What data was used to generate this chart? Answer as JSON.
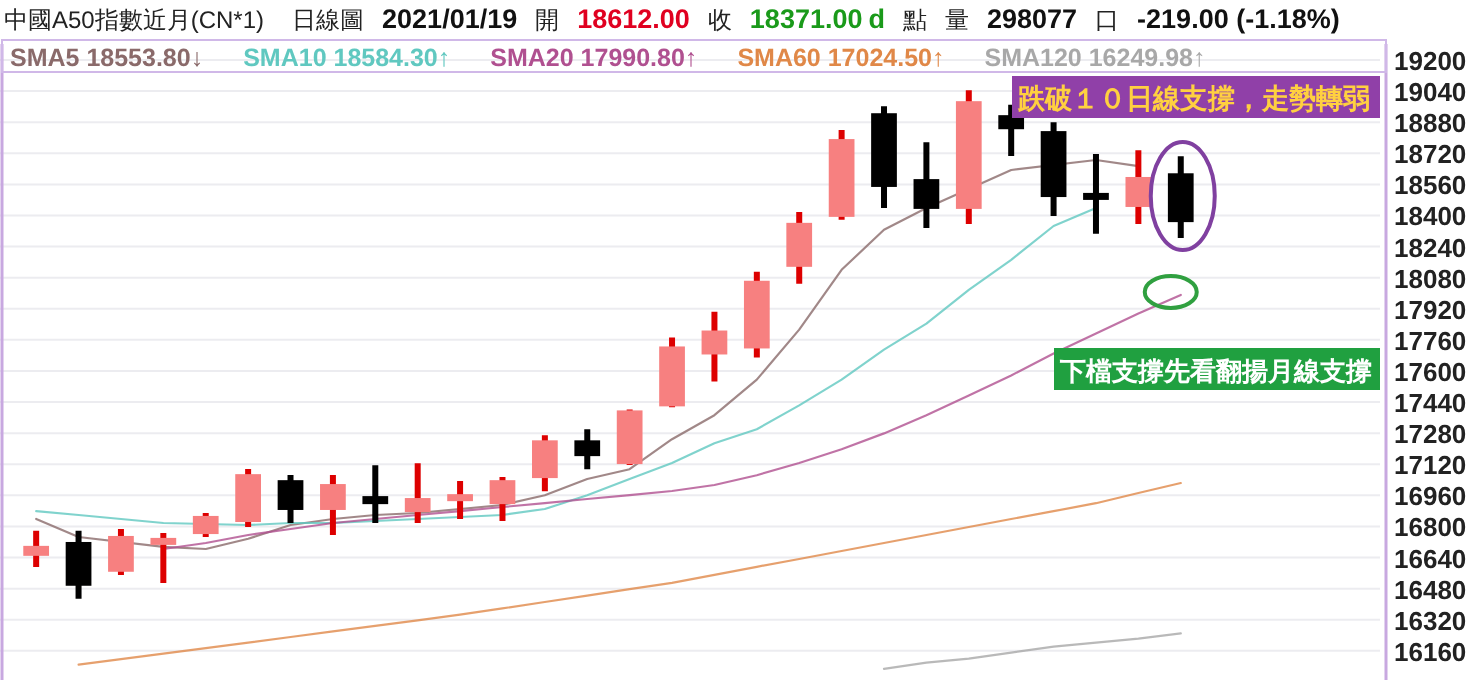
{
  "chart_data": {
    "type": "candlestick",
    "title": "中國A50指數近月(CN*1)",
    "annotations": [
      "日線圖",
      "2021/01/19",
      "開",
      "18612.00",
      "收",
      "18371.00",
      "d",
      "點",
      "量",
      "298077",
      "口",
      "-219.00 (-1.18%)",
      "跌破１０日線支撐，走勢轉弱",
      "下檔支撐先看翻揚月線支撐"
    ],
    "categories": [
      null,
      null,
      null,
      null,
      null,
      null,
      null,
      null,
      null,
      null,
      null,
      null,
      null,
      null,
      null,
      null,
      null,
      null,
      null,
      null,
      null,
      null,
      null,
      null,
      null,
      null,
      null,
      null
    ],
    "ohlc": [
      [
        16654,
        16767,
        16602,
        16695
      ],
      [
        16715,
        16767,
        16438,
        16500
      ],
      [
        16572,
        16777,
        16561,
        16746
      ],
      [
        16725,
        16756,
        16520,
        16736
      ],
      [
        16766,
        16859,
        16756,
        16849
      ],
      [
        16828,
        17085,
        16808,
        17064
      ],
      [
        17033,
        17054,
        16828,
        16890
      ],
      [
        16890,
        17054,
        16766,
        17013
      ],
      [
        16951,
        17105,
        16828,
        16920
      ],
      [
        16879,
        17115,
        16828,
        16941
      ],
      [
        16941,
        17023,
        16849,
        16961
      ],
      [
        16920,
        17044,
        16838,
        17033
      ],
      [
        17054,
        17259,
        16992,
        17238
      ],
      [
        17238,
        17290,
        17105,
        17167
      ],
      [
        17126,
        17392,
        17126,
        17392
      ],
      [
        17423,
        17762,
        17423,
        17721
      ],
      [
        17690,
        17895,
        17556,
        17803
      ],
      [
        17721,
        18100,
        17680,
        18059
      ],
      [
        18141,
        18408,
        18059,
        18357
      ],
      [
        18398,
        18829,
        18388,
        18788
      ],
      [
        18921,
        18952,
        18449,
        18552
      ],
      [
        18582,
        18767,
        18346,
        18439
      ],
      [
        18439,
        19034,
        18367,
        18983
      ],
      [
        18911,
        18960,
        18716,
        18849
      ],
      [
        18829,
        18870,
        18408,
        18500
      ],
      [
        18511,
        18706,
        18316,
        18490
      ],
      [
        18449,
        18726,
        18367,
        18593
      ],
      [
        18612,
        18695,
        18295,
        18371
      ]
    ],
    "series": [
      {
        "name": "SMA5 18553.80↓",
        "type": "line",
        "color": "#8a6a6a",
        "values": [
          16838,
          16746,
          null,
          16695,
          16684,
          16736,
          16808,
          16838,
          16859,
          16869,
          16890,
          16910,
          16961,
          17044,
          17095,
          17249,
          17372,
          17556,
          17813,
          18121,
          18326,
          18439,
          null,
          18634,
          null,
          18685,
          18654,
          null
        ]
      },
      {
        "name": "SMA10 18584.30↑",
        "type": "line",
        "color": "#60c8c0",
        "values": [
          16879,
          16859,
          16838,
          16818,
          null,
          16808,
          16818,
          16818,
          16828,
          16838,
          16849,
          16859,
          16890,
          16961,
          17044,
          17126,
          17228,
          17300,
          17423,
          17556,
          17710,
          17844,
          18018,
          18172,
          18346,
          18439,
          null,
          null
        ]
      },
      {
        "name": "SMA20 17990.80↑",
        "type": "line",
        "color": "#b05090",
        "values": [
          null,
          null,
          null,
          16684,
          16715,
          16756,
          16787,
          16818,
          16838,
          16859,
          16879,
          16900,
          16920,
          16941,
          16961,
          16982,
          17013,
          17064,
          17126,
          17197,
          17279,
          17372,
          17474,
          17577,
          17690,
          17792,
          17895,
          17991
        ]
      },
      {
        "name": "SMA60 17024.50↑",
        "type": "line",
        "color": "#e08848",
        "values": [
          null,
          16089,
          16117,
          16146,
          16174,
          16202,
          16231,
          16260,
          16289,
          16317,
          16346,
          16378,
          16411,
          16444,
          16477,
          16510,
          16551,
          16592,
          16633,
          16674,
          16715,
          16756,
          16797,
          16838,
          16879,
          16920,
          16972,
          17024
        ]
      },
      {
        "name": "SMA120 16249.98↑",
        "type": "line",
        "color": "#a8a8a8",
        "values": [
          null,
          null,
          null,
          null,
          null,
          null,
          null,
          null,
          null,
          null,
          null,
          null,
          null,
          null,
          null,
          null,
          null,
          null,
          null,
          null,
          16068,
          16100,
          16120,
          16151,
          16182,
          16202,
          16223,
          16250
        ]
      }
    ],
    "ylim": [
      16010,
      19200
    ],
    "yticks": [
      16160,
      16320,
      16480,
      16640,
      16800,
      16960,
      17120,
      17280,
      17440,
      17600,
      17760,
      17920,
      18080,
      18240,
      18400,
      18560,
      18720,
      18880,
      19040,
      19200
    ],
    "grid": "y",
    "tick_labels": "y",
    "legend": "top"
  }
}
